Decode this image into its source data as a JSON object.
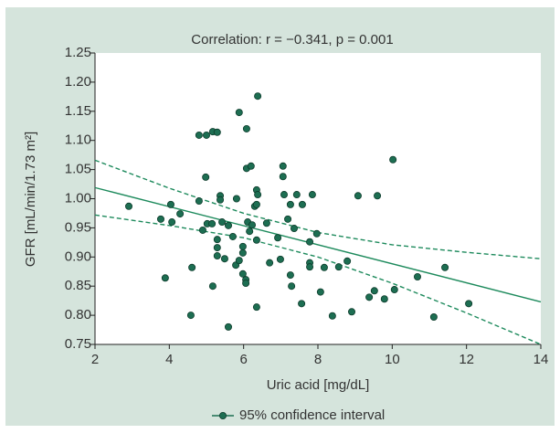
{
  "chart_data": {
    "type": "scatter",
    "title": "Correlation: r = −0.341, p = 0.001",
    "x_label": "Uric acid [mg/dL]",
    "y_label": "GFR [mL/min/1.73 m²]",
    "xlim": [
      2,
      14
    ],
    "xticks": [
      2,
      4,
      6,
      8,
      10,
      12,
      14
    ],
    "ylim": [
      0.75,
      1.25
    ],
    "yticks": [
      0.75,
      {
        "value": 0.8,
        "label": "0.80"
      },
      0.85,
      {
        "value": 0.9,
        "label": "0.90"
      },
      0.95,
      {
        "value": 1.0,
        "label": "1.00"
      },
      1.05,
      {
        "value": 1.1,
        "label": "1.10"
      },
      1.15,
      {
        "value": 1.2,
        "label": "1.20"
      },
      1.25
    ],
    "series": [
      {
        "name": "95% confidence interval",
        "color": "#1d6e52",
        "x": [
          2.91,
          3.77,
          4.04,
          4.07,
          3.89,
          4.29,
          4.61,
          4.58,
          4.8,
          5.0,
          5.17,
          5.29,
          4.98,
          4.8,
          4.9,
          5.02,
          5.15,
          5.17,
          5.29,
          5.29,
          5.29,
          5.37,
          5.37,
          5.42,
          5.49,
          5.59,
          5.59,
          5.71,
          5.81,
          5.79,
          5.88,
          5.88,
          5.98,
          5.98,
          5.98,
          6.06,
          6.06,
          6.08,
          6.08,
          6.2,
          6.11,
          6.16,
          6.23,
          6.3,
          6.35,
          6.38,
          6.35,
          6.35,
          6.35,
          6.38,
          6.62,
          6.7,
          6.92,
          6.99,
          7.06,
          7.06,
          7.09,
          7.19,
          7.26,
          7.26,
          7.29,
          7.36,
          7.43,
          7.58,
          7.56,
          7.78,
          7.78,
          7.78,
          7.85,
          7.97,
          8.07,
          8.17,
          8.39,
          8.56,
          8.79,
          8.91,
          9.08,
          9.38,
          9.52,
          9.6,
          9.79,
          10.02,
          10.06,
          10.68,
          11.12,
          11.42,
          12.06
        ],
        "values": [
          0.987,
          0.965,
          0.99,
          0.96,
          0.864,
          0.974,
          0.882,
          0.8,
          1.109,
          1.109,
          1.115,
          1.114,
          1.037,
          0.996,
          0.946,
          0.957,
          0.957,
          0.85,
          0.93,
          0.916,
          0.902,
          1.005,
          0.998,
          0.96,
          0.897,
          0.78,
          0.954,
          0.935,
          1.0,
          0.886,
          1.148,
          0.894,
          0.918,
          0.907,
          0.871,
          0.861,
          0.855,
          1.12,
          1.052,
          1.056,
          0.96,
          0.944,
          0.955,
          0.987,
          1.015,
          1.007,
          0.99,
          0.929,
          0.814,
          1.176,
          0.958,
          0.89,
          0.933,
          0.896,
          1.056,
          1.038,
          1.007,
          0.965,
          0.99,
          0.869,
          0.85,
          0.949,
          1.007,
          0.99,
          0.82,
          0.89,
          0.883,
          0.926,
          1.007,
          0.94,
          0.84,
          0.882,
          0.799,
          0.883,
          0.893,
          0.806,
          1.005,
          0.831,
          0.842,
          1.005,
          0.828,
          1.067,
          0.844,
          0.866,
          0.797,
          0.882,
          0.82
        ]
      }
    ],
    "lines": [
      {
        "color": "#1d8a5c",
        "style": "solid",
        "x": [
          2,
          14
        ],
        "values": [
          1.019,
          0.823
        ]
      },
      {
        "color": "#1d8a5c",
        "style": "dashed",
        "x": [
          2,
          4,
          6,
          8,
          10,
          12,
          14
        ],
        "values": [
          1.066,
          1.018,
          0.975,
          0.942,
          0.921,
          0.908,
          0.897
        ]
      },
      {
        "color": "#1d8a5c",
        "style": "dashed",
        "x": [
          2,
          4,
          6,
          8,
          10,
          12,
          14
        ],
        "values": [
          0.972,
          0.954,
          0.933,
          0.9,
          0.855,
          0.804,
          0.75
        ]
      }
    ]
  }
}
